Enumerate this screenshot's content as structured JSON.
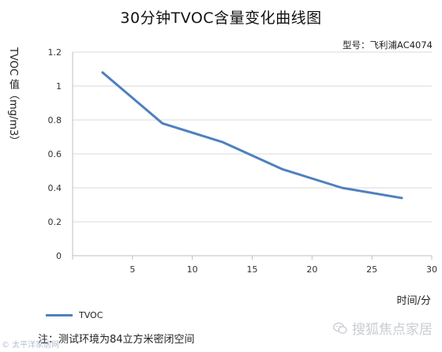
{
  "chart_data": {
    "type": "line",
    "title": "30分钟TVOC含量变化曲线图",
    "xlabel": "时间/分",
    "ylabel": "TVOC 值（mg/m3）",
    "xlim": [
      0,
      30
    ],
    "ylim": [
      0,
      1.2
    ],
    "x_ticks": [
      "5",
      "10",
      "15",
      "20",
      "25",
      "30"
    ],
    "y_ticks": [
      "0",
      "0.2",
      "0.4",
      "0.6",
      "0.8",
      "1",
      "1.2"
    ],
    "grid": true,
    "legend_position": "bottom-left",
    "series": [
      {
        "name": "TVOC",
        "color": "#4f81bd",
        "x": [
          2.5,
          7.5,
          12.5,
          17.5,
          22.5,
          27.5
        ],
        "y": [
          1.08,
          0.78,
          0.67,
          0.51,
          0.4,
          0.34
        ]
      }
    ]
  },
  "annotations": {
    "model": "型号：飞利浦AC4074",
    "note": "注：测试环境为84立方米密闭空间"
  },
  "watermarks": {
    "left": "© 太平洋家居网",
    "right": "搜狐焦点家居"
  },
  "colors": {
    "series": "#4f81bd",
    "grid": "#d9d9d9",
    "axis": "#bfbfbf"
  }
}
